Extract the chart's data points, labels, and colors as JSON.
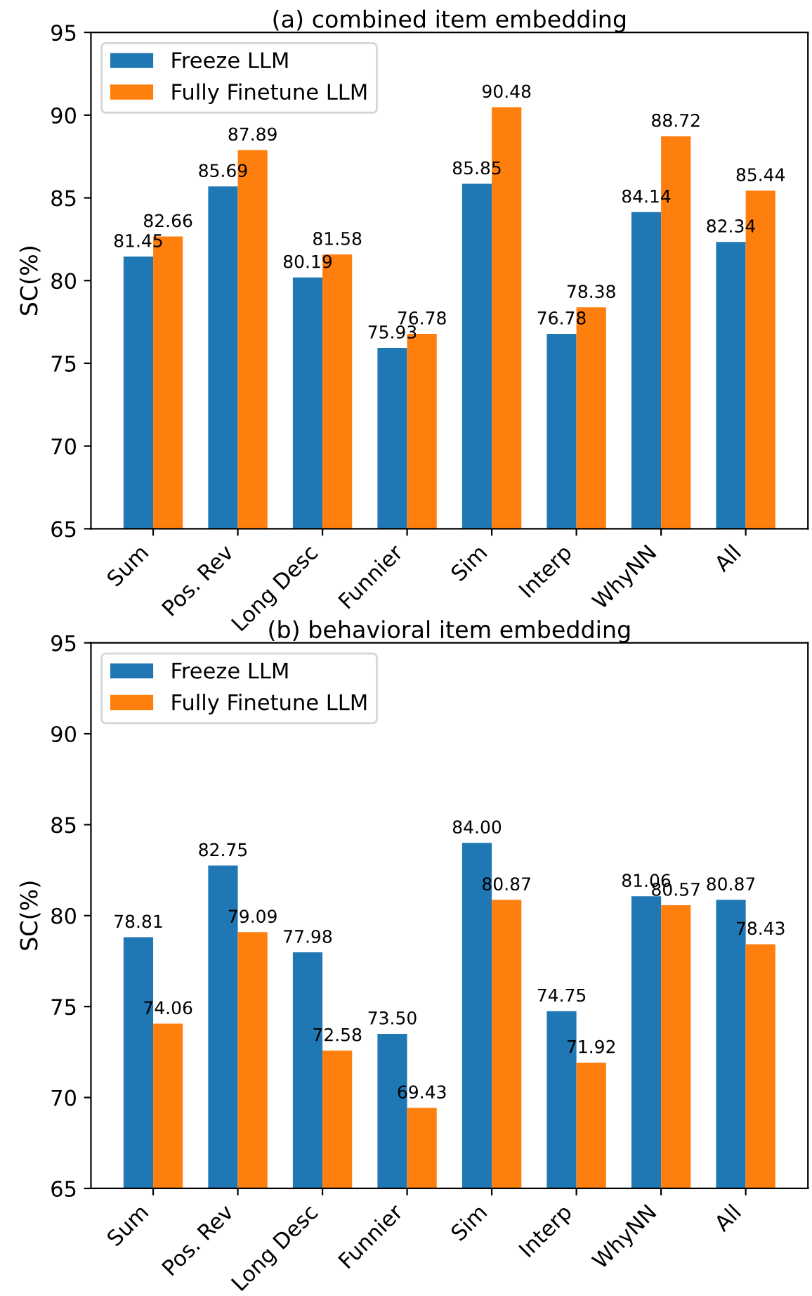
{
  "chart_data": [
    {
      "type": "bar",
      "title": "(a) combined item embedding",
      "ylabel": "SC(%)",
      "categories": [
        "Sum",
        "Pos. Rev",
        "Long Desc",
        "Funnier",
        "Sim",
        "Interp",
        "WhyNN",
        "All"
      ],
      "series": [
        {
          "name": "Freeze LLM",
          "color": "#1f77b4",
          "values": [
            81.45,
            85.69,
            80.19,
            75.93,
            85.85,
            76.78,
            84.14,
            82.34
          ],
          "value_labels": [
            "81.45",
            "85.69",
            "80.19",
            "75.93",
            "85.85",
            "76.78",
            "84.14",
            "82.34"
          ]
        },
        {
          "name": "Fully Finetune LLM",
          "color": "#ff7f0e",
          "values": [
            82.66,
            87.89,
            81.58,
            76.78,
            90.48,
            78.38,
            88.72,
            85.44
          ],
          "value_labels": [
            "82.66",
            "87.89",
            "81.58",
            "76.78",
            "90.48",
            "78.38",
            "88.72",
            "85.44"
          ]
        }
      ],
      "ylim": [
        65,
        95
      ],
      "yticks": [
        65,
        70,
        75,
        80,
        85,
        90,
        95
      ],
      "legend": "top left",
      "grid": false
    },
    {
      "type": "bar",
      "title": "(b) behavioral item embedding",
      "ylabel": "SC(%)",
      "categories": [
        "Sum",
        "Pos. Rev",
        "Long Desc",
        "Funnier",
        "Sim",
        "Interp",
        "WhyNN",
        "All"
      ],
      "series": [
        {
          "name": "Freeze LLM",
          "color": "#1f77b4",
          "values": [
            78.81,
            82.75,
            77.98,
            73.5,
            84.0,
            74.75,
            81.06,
            80.87
          ],
          "value_labels": [
            "78.81",
            "82.75",
            "77.98",
            "73.50",
            "84.00",
            "74.75",
            "81.06",
            "80.87"
          ]
        },
        {
          "name": "Fully Finetune LLM",
          "color": "#ff7f0e",
          "values": [
            74.06,
            79.09,
            72.58,
            69.43,
            80.87,
            71.92,
            80.57,
            78.43
          ],
          "value_labels": [
            "74.06",
            "79.09",
            "72.58",
            "69.43",
            "80.87",
            "71.92",
            "80.57",
            "78.43"
          ]
        }
      ],
      "ylim": [
        65,
        95
      ],
      "yticks": [
        65,
        70,
        75,
        80,
        85,
        90,
        95
      ],
      "legend": "top left",
      "grid": false
    }
  ]
}
